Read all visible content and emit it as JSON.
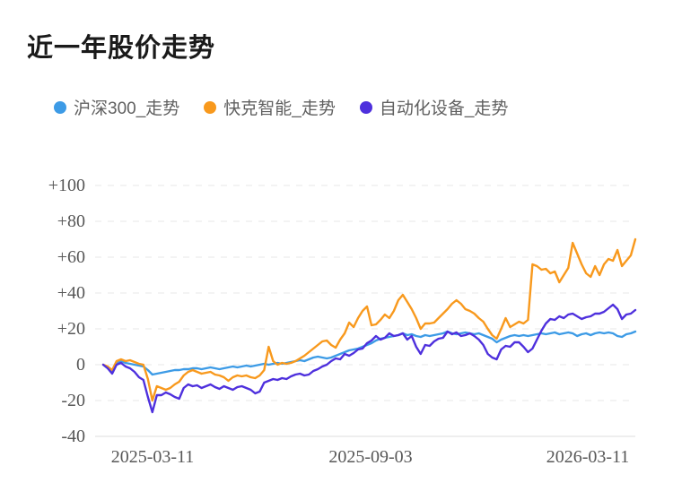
{
  "page": {
    "title": "近一年股价走势"
  },
  "chart_data": {
    "type": "line",
    "title": "近一年股价走势",
    "unit": "percent_change",
    "ylim": [
      -40,
      100
    ],
    "y_values": [
      100,
      80,
      60,
      40,
      20,
      0,
      -20,
      -40
    ],
    "y_ticks": [
      "+100",
      "+80",
      "+60",
      "+40",
      "+20",
      "0",
      "-20",
      "-40"
    ],
    "x_ticks": [
      "2025-03-11",
      "2025-09-03",
      "2026-03-11"
    ],
    "grid": "horizontal-dashed",
    "legend_position": "top-left",
    "series": [
      {
        "name": "沪深300_走势",
        "color": "#3d9be6",
        "values": [
          0,
          -2,
          -4,
          1,
          2,
          1,
          0.5,
          0,
          -0.5,
          -1,
          -3,
          -5.5,
          -5,
          -4.5,
          -4,
          -3.5,
          -3,
          -3,
          -2.5,
          -2.5,
          -2,
          -2,
          -2.5,
          -2,
          -1.5,
          -2,
          -2.5,
          -2,
          -1.5,
          -1,
          -1.5,
          -1,
          -0.5,
          -1,
          -0.5,
          0,
          0.5,
          0,
          0.5,
          1,
          0.5,
          1,
          1.5,
          2,
          2.5,
          2,
          3,
          4,
          4.5,
          4,
          3.5,
          4,
          5,
          6,
          7,
          8,
          8.5,
          9,
          10,
          11,
          12,
          13.5,
          14.5,
          15,
          15.5,
          16,
          16.5,
          17.5,
          16.5,
          17,
          16,
          15.5,
          16.5,
          16,
          16.5,
          17,
          17.5,
          18.5,
          17.5,
          17,
          17.5,
          18,
          17.5,
          17,
          17.5,
          16.5,
          15.5,
          14.5,
          12.5,
          14,
          15,
          16,
          16.5,
          16,
          16.5,
          16,
          16.5,
          17,
          17.5,
          17,
          17.5,
          18,
          17,
          17.5,
          18,
          17.5,
          16,
          17,
          17.5,
          16.5,
          17.5,
          18,
          17.5,
          18,
          17.5,
          16,
          15.5,
          17,
          17.5,
          18.5
        ]
      },
      {
        "name": "快克智能_走势",
        "color": "#f8991d",
        "values": [
          0,
          -1,
          -3,
          2,
          3,
          2,
          2.5,
          1.5,
          0.5,
          0,
          -8,
          -20,
          -12,
          -13,
          -14,
          -13,
          -11,
          -9.5,
          -6,
          -4,
          -3,
          -4,
          -5,
          -4.5,
          -4,
          -5.5,
          -6,
          -7,
          -9,
          -7,
          -6,
          -6.5,
          -6,
          -7,
          -7.5,
          -6,
          -3,
          10,
          2,
          0,
          1,
          0.5,
          1,
          2,
          3.5,
          5,
          7,
          9,
          11,
          13,
          13.5,
          11,
          9.5,
          14,
          17.5,
          23.5,
          21,
          26,
          30,
          32.5,
          22,
          22.5,
          25,
          28,
          26,
          30,
          36,
          39,
          35,
          31,
          26,
          20,
          23,
          23,
          23.5,
          26,
          28.5,
          31,
          34,
          36,
          34,
          31,
          30,
          28.5,
          26,
          24,
          20,
          16.5,
          14.5,
          20,
          26,
          21,
          22.5,
          24,
          23,
          25,
          56,
          55,
          53,
          53.5,
          51,
          52,
          46,
          50,
          54,
          68,
          62,
          56,
          51,
          49,
          55,
          50,
          56,
          59,
          58,
          64,
          55,
          58,
          61,
          70
        ]
      },
      {
        "name": "自动化设备_走势",
        "color": "#4e30dd",
        "values": [
          0,
          -2,
          -5,
          0,
          1,
          -1,
          -2,
          -4,
          -7,
          -8.5,
          -18,
          -26.5,
          -17,
          -17,
          -15.5,
          -16.5,
          -18,
          -19,
          -13,
          -11,
          -12,
          -11.5,
          -13,
          -12,
          -11,
          -12.5,
          -13.5,
          -12,
          -13,
          -14,
          -12.5,
          -12,
          -13,
          -14,
          -16,
          -15,
          -10,
          -9,
          -8,
          -8.5,
          -7.5,
          -8,
          -6.5,
          -5.5,
          -5,
          -6,
          -5.5,
          -3.5,
          -2.5,
          -1,
          0,
          2,
          3.5,
          3,
          6,
          5,
          6.5,
          8.5,
          9,
          12,
          13.5,
          16,
          14,
          15,
          17.5,
          16,
          16.5,
          17.5,
          14,
          16,
          10,
          6,
          11,
          10.5,
          13,
          14.5,
          15,
          18.5,
          17,
          18,
          16,
          16.5,
          17.5,
          16,
          14,
          11,
          6,
          4,
          3,
          8.5,
          10.5,
          10,
          12.5,
          12.5,
          10,
          7,
          9,
          14,
          19,
          23,
          25.5,
          25,
          27,
          26,
          28,
          28.5,
          27,
          25.5,
          26.5,
          27,
          28.5,
          28.5,
          29.5,
          31.5,
          33.5,
          31,
          25.5,
          28,
          28.5,
          30.5
        ]
      }
    ]
  }
}
